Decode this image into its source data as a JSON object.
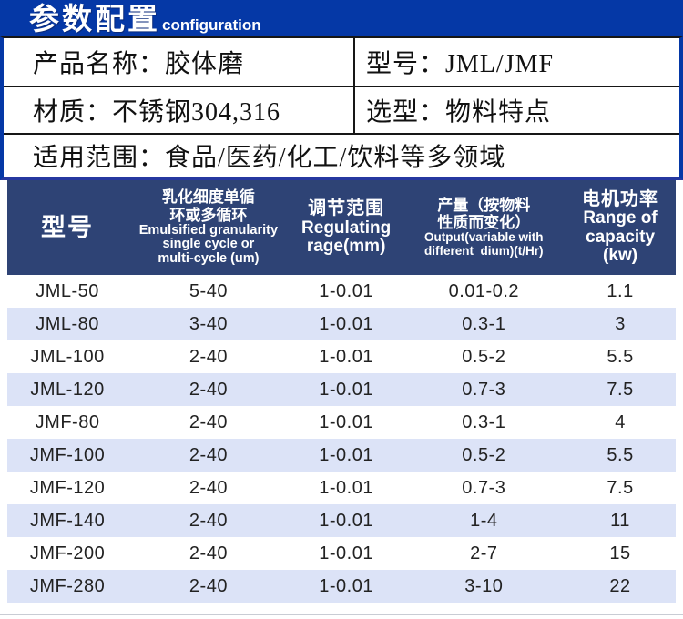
{
  "banner": {
    "title_zh": "参数配置",
    "title_en": "configuration"
  },
  "info": {
    "rows": [
      {
        "left": "产品名称：胶体磨",
        "right": "型号：JML/JMF"
      },
      {
        "left": "材质：不锈钢304,316",
        "right": "选型：物料特点"
      },
      {
        "full": "适用范围：食品/医药/化工/饮料等多领域"
      }
    ]
  },
  "table": {
    "header": [
      {
        "zh": "型号",
        "en": ""
      },
      {
        "zh": "乳化细度单循\n环或多循环",
        "en": "Emulsified granularity\nsingle cycle or\nmulti-cycle (um)"
      },
      {
        "zh": "调节范围",
        "en": "Regulating\nrage(mm)"
      },
      {
        "zh": "产量（按物料\n性质而变化）",
        "en": "Output(variable with\ndifferent  dium)(t/Hr)"
      },
      {
        "zh": "电机功率",
        "en": "Range of\ncapacity\n(kw)"
      }
    ],
    "rows": [
      [
        "JML-50",
        "5-40",
        "1-0.01",
        "0.01-0.2",
        "1.1"
      ],
      [
        "JML-80",
        "3-40",
        "1-0.01",
        "0.3-1",
        "3"
      ],
      [
        "JML-100",
        "2-40",
        "1-0.01",
        "0.5-2",
        "5.5"
      ],
      [
        "JML-120",
        "2-40",
        "1-0.01",
        "0.7-3",
        "7.5"
      ],
      [
        "JMF-80",
        "2-40",
        "1-0.01",
        "0.3-1",
        "4"
      ],
      [
        "JMF-100",
        "2-40",
        "1-0.01",
        "0.5-2",
        "5.5"
      ],
      [
        "JMF-120",
        "2-40",
        "1-0.01",
        "0.7-3",
        "7.5"
      ],
      [
        "JMF-140",
        "2-40",
        "1-0.01",
        "1-4",
        "11"
      ],
      [
        "JMF-200",
        "2-40",
        "1-0.01",
        "2-7",
        "15"
      ],
      [
        "JMF-280",
        "2-40",
        "1-0.01",
        "3-10",
        "22"
      ]
    ]
  },
  "colors": {
    "banner_bg": "#0538a6",
    "header_bg": "#2e4375",
    "alt_row_bg": "#dce3f7",
    "accent_line": "#2638a0"
  }
}
